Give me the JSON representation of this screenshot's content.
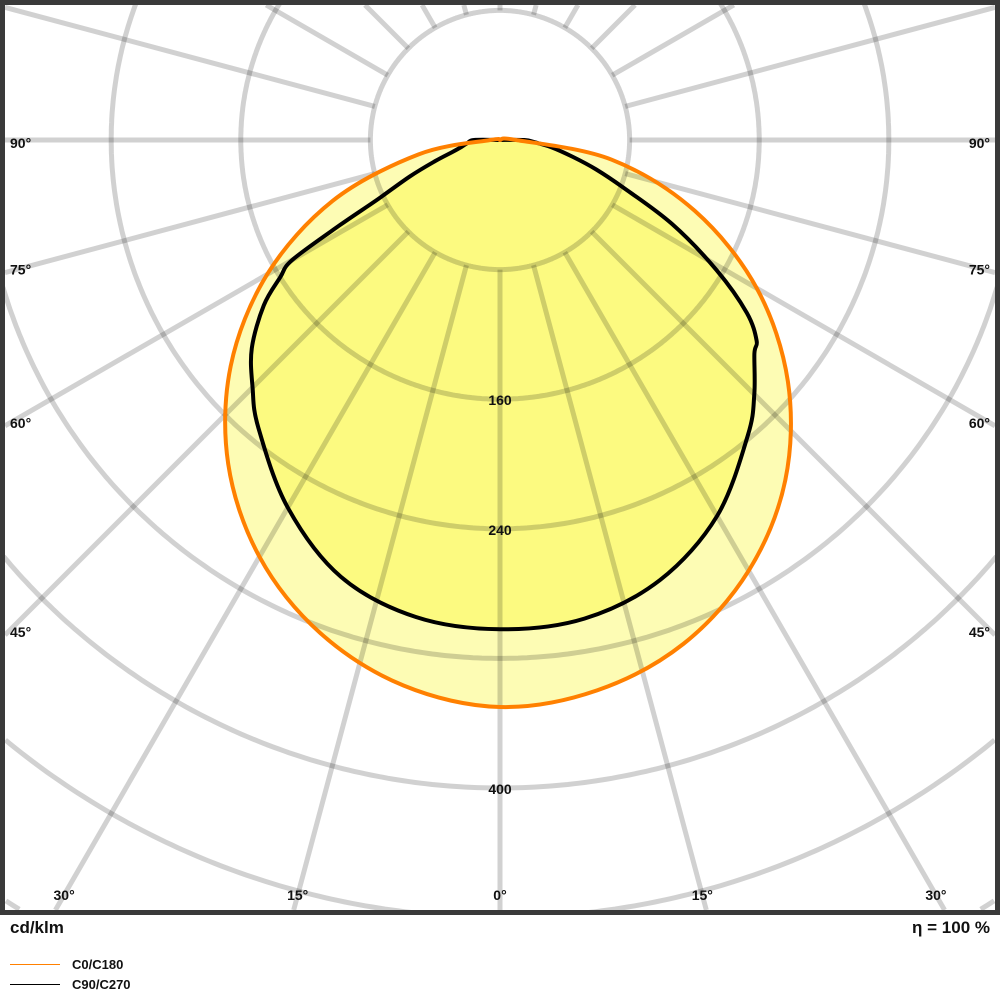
{
  "chart_data": {
    "type": "polar",
    "unit_label": "cd/klm",
    "efficiency_label": "η = 100 %",
    "radial_ticks": [
      80,
      160,
      240,
      320,
      400,
      480,
      560
    ],
    "radial_tick_labels": [
      "160",
      "240",
      "400"
    ],
    "angle_step_deg": 15,
    "side_angle_labels": [
      "90°",
      "75°",
      "60°",
      "45°"
    ],
    "bottom_angle_labels": [
      "30°",
      "15°",
      "0°",
      "15°",
      "30°"
    ],
    "grid": true,
    "legend_placement": "bottom-left",
    "series": [
      {
        "name": "C0/C180",
        "color": "#ff8000",
        "fill": "#fdfcb4",
        "gamma_deg_left": [
          0,
          10,
          20,
          30,
          40,
          50,
          60,
          70,
          80,
          90
        ],
        "intensity_left": [
          350,
          342,
          324,
          297,
          261,
          217,
          166,
          110,
          51,
          6
        ],
        "gamma_deg_right": [
          0,
          10,
          20,
          30,
          40,
          50,
          60,
          70,
          80,
          90
        ],
        "intensity_right": [
          350,
          345,
          331,
          307,
          274,
          232,
          183,
          128,
          70,
          10
        ]
      },
      {
        "name": "C90/C270",
        "color": "#000000",
        "fill": "#fcfa80",
        "gamma_deg_left": [
          0,
          10,
          20,
          30,
          40,
          45,
          50,
          55,
          58,
          60,
          62,
          64,
          68,
          72,
          76,
          80,
          85,
          90
        ],
        "intensity_left": [
          302,
          299,
          287,
          262,
          232,
          216,
          200,
          178,
          160,
          148,
          112,
          85,
          60,
          42,
          30,
          24,
          20,
          16
        ],
        "gamma_deg_right": [
          0,
          10,
          20,
          30,
          40,
          45,
          50,
          52,
          55,
          59,
          64,
          69,
          73,
          77,
          82,
          86,
          90
        ],
        "intensity_right": [
          302,
          300,
          289,
          268,
          238,
          222,
          205,
          201,
          186,
          156,
          118,
          81,
          62,
          46,
          32,
          22,
          15
        ]
      }
    ]
  }
}
